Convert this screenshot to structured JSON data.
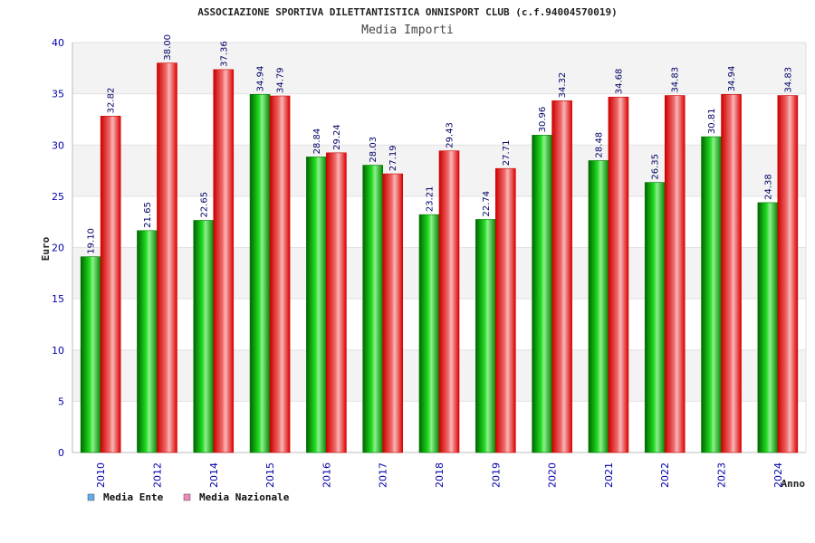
{
  "chart_data": {
    "type": "bar",
    "title": "ASSOCIAZIONE SPORTIVA DILETTANTISTICA ONNISPORT CLUB (c.f.94004570019)",
    "subtitle": "Media Importi",
    "xlabel": "Anno",
    "ylabel": "Euro",
    "ylim": [
      0,
      40
    ],
    "yticks": [
      "0",
      "5",
      "10",
      "15",
      "20",
      "25",
      "30",
      "35",
      "40"
    ],
    "grid": true,
    "legend_position": "bottom-left",
    "categories": [
      "2010",
      "2012",
      "2014",
      "2015",
      "2016",
      "2017",
      "2018",
      "2019",
      "2020",
      "2021",
      "2022",
      "2023",
      "2024"
    ],
    "series": [
      {
        "name": "Media Ente",
        "color": "#00b000",
        "legend_color": "#66aaee",
        "values": [
          19.1,
          21.65,
          22.65,
          34.94,
          28.84,
          28.03,
          23.21,
          22.74,
          30.96,
          28.48,
          26.35,
          30.81,
          24.38
        ],
        "labels": [
          "19.10",
          "21.65",
          "22.65",
          "34.94",
          "28.84",
          "28.03",
          "23.21",
          "22.74",
          "30.96",
          "28.48",
          "26.35",
          "30.81",
          "24.38"
        ]
      },
      {
        "name": "Media Nazionale",
        "color": "#ee1111",
        "legend_color": "#ee88bb",
        "values": [
          32.82,
          38.0,
          37.36,
          34.79,
          29.24,
          27.19,
          29.43,
          27.71,
          34.32,
          34.68,
          34.83,
          34.94,
          34.83
        ],
        "labels": [
          "32.82",
          "38.00",
          "37.36",
          "34.79",
          "29.24",
          "27.19",
          "29.43",
          "27.71",
          "34.32",
          "34.68",
          "34.83",
          "34.94",
          "34.83"
        ]
      }
    ]
  }
}
